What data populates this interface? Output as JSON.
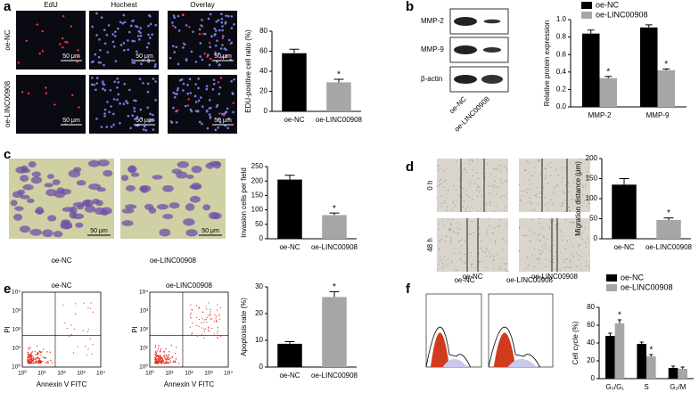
{
  "figure": {
    "panel_labels": [
      "a",
      "b",
      "c",
      "d",
      "e",
      "f"
    ],
    "a": {
      "columns": [
        "EdU",
        "Hochest",
        "Overlay"
      ],
      "rows": [
        "oe-NC",
        "oe-LINC00908"
      ],
      "scale_bar": "50 μm"
    },
    "b": {
      "bands": [
        "MMP-2",
        "MMP-9",
        "β-actin"
      ],
      "lanes": [
        "oe-NC",
        "oe-LINC00908"
      ]
    },
    "c": {
      "images": [
        "oe-NC",
        "oe-LINC00908"
      ],
      "scale_bar": "50 μm"
    },
    "d": {
      "rows": [
        "0 h",
        "48 h"
      ],
      "images": [
        "oe-NC",
        "oe-LINC00908"
      ]
    },
    "e": {
      "plots": [
        "oe-NC",
        "oe-LINC00908"
      ],
      "y_label": "PI",
      "x_label": "Annexin V FITC",
      "ticks": [
        "10⁰",
        "10¹",
        "10²",
        "10³",
        "10⁴"
      ]
    },
    "f": {
      "plots": [
        "oe-NC",
        "oe-LINC00908"
      ]
    }
  },
  "chart_data": [
    {
      "type": "bar",
      "y_label": "EDU-positive cell ratio (%)",
      "categories": [
        "oe-NC",
        "oe-LINC00908"
      ],
      "values": [
        58,
        29
      ],
      "errors": [
        4,
        3
      ],
      "colors": [
        "#000000",
        "#a6a6a6"
      ],
      "annotations": [
        null,
        "*"
      ],
      "ylim": [
        0,
        80
      ],
      "yticks": [
        0,
        20,
        40,
        60,
        80
      ]
    },
    {
      "type": "bar",
      "y_label": "Relative protein expression",
      "categories": [
        "MMP-2",
        "MMP-9"
      ],
      "series": [
        {
          "name": "oe-NC",
          "color": "#000000",
          "values": [
            0.84,
            0.91
          ],
          "errors": [
            0.04,
            0.03
          ]
        },
        {
          "name": "oe-LINC00908",
          "color": "#a6a6a6",
          "values": [
            0.33,
            0.42
          ],
          "errors": [
            0.02,
            0.015
          ],
          "annotations": [
            "*",
            "*"
          ]
        }
      ],
      "ylim": [
        0,
        1
      ],
      "yticks": [
        {
          "value": 0,
          "label": "0.0"
        },
        0.2,
        0.4,
        0.6,
        0.8,
        {
          "value": 1,
          "label": "1.0"
        }
      ],
      "legend": "top"
    },
    {
      "type": "bar",
      "y_label": "Invasion cells  per field",
      "categories": [
        "oe-NC",
        "oe-LINC00908"
      ],
      "values": [
        205,
        82
      ],
      "errors": [
        15,
        7
      ],
      "colors": [
        "#000000",
        "#a6a6a6"
      ],
      "annotations": [
        null,
        "*"
      ],
      "ylim": [
        0,
        250
      ],
      "yticks": [
        0,
        50,
        100,
        150,
        200,
        250
      ]
    },
    {
      "type": "bar",
      "y_label": "Migration distance (μm)",
      "categories": [
        "oe-NC",
        "oe-LINC00908"
      ],
      "values": [
        135,
        47
      ],
      "errors": [
        15,
        5
      ],
      "colors": [
        "#000000",
        "#a6a6a6"
      ],
      "annotations": [
        null,
        "*"
      ],
      "ylim": [
        0,
        200
      ],
      "yticks": [
        0,
        50,
        100,
        150,
        200
      ]
    },
    {
      "type": "bar",
      "y_label": "Apoptosis rate (%)",
      "categories": [
        "oe-NC",
        "oe-LINC00908"
      ],
      "values": [
        8.7,
        26.2
      ],
      "errors": [
        0.8,
        2
      ],
      "colors": [
        "#000000",
        "#a6a6a6"
      ],
      "annotations": [
        null,
        "*"
      ],
      "ylim": [
        0,
        30
      ],
      "yticks": [
        0,
        10,
        20,
        30
      ]
    },
    {
      "type": "bar",
      "y_label": "Cell cycle (%)",
      "categories": [
        "G₀/G₁",
        "S",
        "G₂/M"
      ],
      "series": [
        {
          "name": "oe-NC",
          "color": "#000000",
          "values": [
            48,
            39,
            12
          ],
          "errors": [
            3,
            2,
            2
          ]
        },
        {
          "name": "oe-LINC00908",
          "color": "#a6a6a6",
          "values": [
            62,
            25,
            11
          ],
          "errors": [
            4,
            2,
            2
          ],
          "annotations": [
            "*",
            "*",
            null
          ]
        }
      ],
      "ylim": [
        0,
        80
      ],
      "yticks": [
        0,
        20,
        40,
        60,
        80
      ],
      "legend": "top"
    }
  ]
}
